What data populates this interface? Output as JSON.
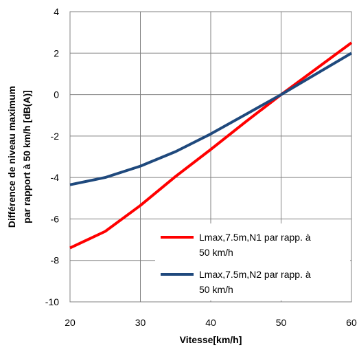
{
  "chart_data": {
    "type": "line",
    "xlabel": "Vitesse[km/h]",
    "ylabel_line1": "Différence de niveau maximum",
    "ylabel_line2": "par rapport à 50 km/h [dB(A)]",
    "xlim": [
      20,
      60
    ],
    "ylim": [
      -10,
      4
    ],
    "x_ticks": [
      20,
      30,
      40,
      50,
      60
    ],
    "y_ticks": [
      -10,
      -8,
      -6,
      -4,
      -2,
      0,
      2,
      4
    ],
    "x_tick_labels": [
      "20",
      "30",
      "40",
      "50",
      "60"
    ],
    "y_tick_labels": [
      "-10",
      "-8",
      "-6",
      "-4",
      "-2",
      "0",
      "2",
      "4"
    ],
    "grid": true,
    "legend_position": "bottom-right",
    "series": [
      {
        "name_line1": "Lmax,7.5m,N1 par rapp. à",
        "name_line2": "50 km/h",
        "color": "#ff0000",
        "x": [
          20,
          25,
          30,
          35,
          40,
          45,
          50,
          55,
          60
        ],
        "y": [
          -7.4,
          -6.6,
          -5.35,
          -3.95,
          -2.65,
          -1.3,
          0.0,
          1.25,
          2.5
        ]
      },
      {
        "name_line1": "Lmax,7.5m,N2 par rapp. à",
        "name_line2": "50 km/h",
        "color": "#1f497d",
        "x": [
          20,
          25,
          30,
          35,
          40,
          45,
          50,
          55,
          60
        ],
        "y": [
          -4.35,
          -4.0,
          -3.45,
          -2.75,
          -1.9,
          -0.95,
          0.0,
          1.0,
          2.0
        ]
      }
    ]
  }
}
